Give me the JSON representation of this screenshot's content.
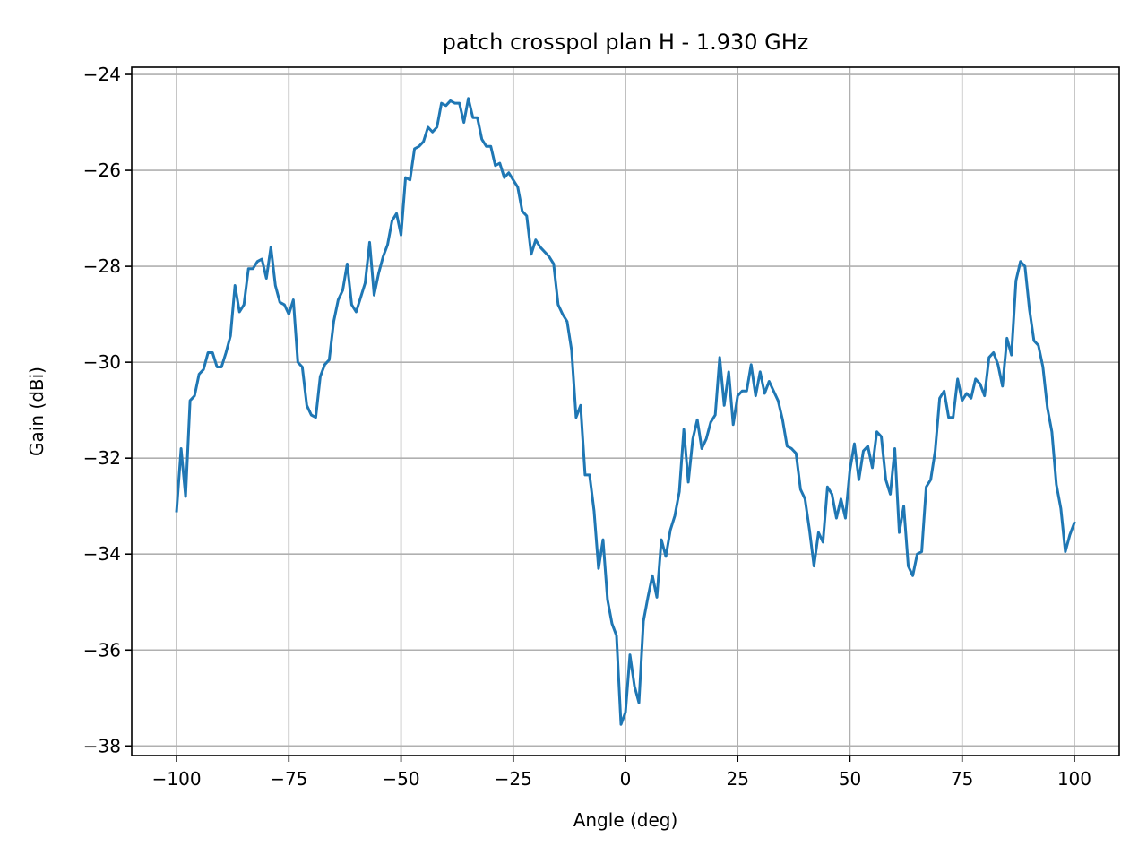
{
  "chart_data": {
    "type": "line",
    "title": "patch crosspol plan H - 1.930 GHz",
    "xlabel": "Angle (deg)",
    "ylabel": "Gain (dBi)",
    "xlim": [
      -110,
      110
    ],
    "ylim": [
      -38.2,
      -23.85
    ],
    "grid": true,
    "x_ticks": [
      -100,
      -75,
      -50,
      -25,
      0,
      25,
      50,
      75,
      100
    ],
    "x_tick_labels": [
      "−100",
      "−75",
      "−50",
      "−25",
      "0",
      "25",
      "50",
      "75",
      "100"
    ],
    "y_ticks": [
      -38,
      -36,
      -34,
      -32,
      -30,
      -28,
      -26,
      -24
    ],
    "y_tick_labels": [
      "−38",
      "−36",
      "−34",
      "−32",
      "−30",
      "−28",
      "−26",
      "−24"
    ],
    "colors": {
      "series": "#1f77b4",
      "grid": "#b0b0b0",
      "axis": "#000000"
    },
    "series": [
      {
        "x": [
          -100,
          -99,
          -98,
          -97,
          -96,
          -95,
          -94,
          -93,
          -92,
          -91,
          -90,
          -89,
          -88,
          -87,
          -86,
          -85,
          -84,
          -83,
          -82,
          -81,
          -80,
          -79,
          -78,
          -77,
          -76,
          -75,
          -74,
          -73,
          -72,
          -71,
          -70,
          -69,
          -68,
          -67,
          -66,
          -65,
          -64,
          -63,
          -62,
          -61,
          -60,
          -59,
          -58,
          -57,
          -56,
          -55,
          -54,
          -53,
          -52,
          -51,
          -50,
          -49,
          -48,
          -47,
          -46,
          -45,
          -44,
          -43,
          -42,
          -41,
          -40,
          -39,
          -38,
          -37,
          -36,
          -35,
          -34,
          -33,
          -32,
          -31,
          -30,
          -29,
          -28,
          -27,
          -26,
          -25,
          -24,
          -23,
          -22,
          -21,
          -20,
          -19,
          -18,
          -17,
          -16,
          -15,
          -14,
          -13,
          -12,
          -11,
          -10,
          -9,
          -8,
          -7,
          -6,
          -5,
          -4,
          -3,
          -2,
          -1,
          0,
          1,
          2,
          3,
          4,
          5,
          6,
          7,
          8,
          9,
          10,
          11,
          12,
          13,
          14,
          15,
          16,
          17,
          18,
          19,
          20,
          21,
          22,
          23,
          24,
          25,
          26,
          27,
          28,
          29,
          30,
          31,
          32,
          33,
          34,
          35,
          36,
          37,
          38,
          39,
          40,
          41,
          42,
          43,
          44,
          45,
          46,
          47,
          48,
          49,
          50,
          51,
          52,
          53,
          54,
          55,
          56,
          57,
          58,
          59,
          60,
          61,
          62,
          63,
          64,
          65,
          66,
          67,
          68,
          69,
          70,
          71,
          72,
          73,
          74,
          75,
          76,
          77,
          78,
          79,
          80,
          81,
          82,
          83,
          84,
          85,
          86,
          87,
          88,
          89,
          90,
          91,
          92,
          93,
          94,
          95,
          96,
          97,
          98,
          99,
          100
        ],
        "y": [
          -33.1,
          -31.8,
          -32.8,
          -30.8,
          -30.7,
          -30.25,
          -30.15,
          -29.8,
          -29.8,
          -30.1,
          -30.1,
          -29.8,
          -29.45,
          -28.4,
          -28.95,
          -28.8,
          -28.05,
          -28.05,
          -27.9,
          -27.85,
          -28.25,
          -27.6,
          -28.4,
          -28.75,
          -28.8,
          -29.0,
          -28.7,
          -30.0,
          -30.1,
          -30.9,
          -31.1,
          -31.15,
          -30.3,
          -30.05,
          -29.95,
          -29.15,
          -28.7,
          -28.5,
          -27.95,
          -28.8,
          -28.95,
          -28.65,
          -28.35,
          -27.5,
          -28.6,
          -28.15,
          -27.8,
          -27.55,
          -27.05,
          -26.9,
          -27.35,
          -26.15,
          -26.2,
          -25.55,
          -25.5,
          -25.4,
          -25.1,
          -25.2,
          -25.1,
          -24.6,
          -24.65,
          -24.55,
          -24.6,
          -24.6,
          -25.0,
          -24.5,
          -24.9,
          -24.9,
          -25.35,
          -25.5,
          -25.5,
          -25.9,
          -25.85,
          -26.15,
          -26.05,
          -26.2,
          -26.35,
          -26.85,
          -26.95,
          -27.75,
          -27.45,
          -27.6,
          -27.7,
          -27.8,
          -27.95,
          -28.8,
          -29.0,
          -29.15,
          -29.75,
          -31.15,
          -30.9,
          -32.35,
          -32.35,
          -33.1,
          -34.3,
          -33.7,
          -34.95,
          -35.45,
          -35.7,
          -37.55,
          -37.3,
          -36.1,
          -36.75,
          -37.1,
          -35.4,
          -34.9,
          -34.45,
          -34.9,
          -33.7,
          -34.05,
          -33.5,
          -33.2,
          -32.7,
          -31.4,
          -32.5,
          -31.6,
          -31.2,
          -31.8,
          -31.6,
          -31.25,
          -31.1,
          -29.9,
          -30.9,
          -30.2,
          -31.3,
          -30.7,
          -30.6,
          -30.6,
          -30.05,
          -30.7,
          -30.2,
          -30.65,
          -30.4,
          -30.6,
          -30.8,
          -31.2,
          -31.75,
          -31.8,
          -31.9,
          -32.65,
          -32.85,
          -33.5,
          -34.25,
          -33.55,
          -33.75,
          -32.6,
          -32.75,
          -33.25,
          -32.85,
          -33.25,
          -32.25,
          -31.7,
          -32.45,
          -31.85,
          -31.75,
          -32.2,
          -31.45,
          -31.55,
          -32.45,
          -32.75,
          -31.8,
          -33.55,
          -33.0,
          -34.25,
          -34.45,
          -34.0,
          -33.95,
          -32.6,
          -32.45,
          -31.85,
          -30.75,
          -30.6,
          -31.15,
          -31.15,
          -30.35,
          -30.8,
          -30.65,
          -30.75,
          -30.35,
          -30.45,
          -30.7,
          -29.9,
          -29.8,
          -30.05,
          -30.5,
          -29.5,
          -29.85,
          -28.3,
          -27.9,
          -28.0,
          -28.9,
          -29.55,
          -29.65,
          -30.1,
          -30.95,
          -31.45,
          -32.55,
          -33.05,
          -33.95,
          -33.6,
          -33.35
        ]
      }
    ]
  }
}
